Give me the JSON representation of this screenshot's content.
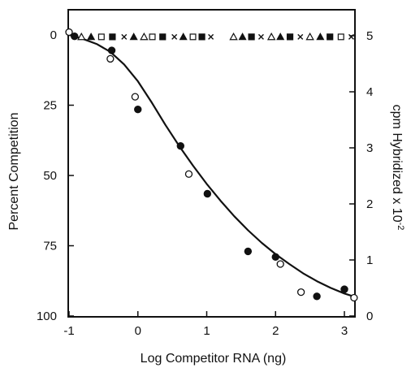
{
  "chart_data": {
    "type": "scatter",
    "xlabel": "Log Competitor RNA (ng)",
    "ylabel_left": "Percent Competition",
    "ylabel_right": "cpm Hybridized x 10",
    "ylabel_right_exponent": "-2",
    "xlim": [
      -1,
      3.2
    ],
    "ylim_left": [
      100,
      -10
    ],
    "ylim_right": [
      0,
      5.4
    ],
    "x_ticks": [
      -1,
      0,
      1,
      2,
      3
    ],
    "y_ticks_left": [
      0,
      25,
      50,
      75,
      100
    ],
    "y_ticks_right": [
      0,
      1,
      2,
      3,
      4,
      5
    ],
    "x_tick_labels": [
      "-1",
      "0",
      "1",
      "2",
      "3"
    ],
    "y_tick_labels_left": [
      "0",
      "25",
      "50",
      "75",
      "100"
    ],
    "y_tick_labels_right": [
      "0",
      "1",
      "2",
      "3",
      "4",
      "5"
    ],
    "grid": false,
    "series": [
      {
        "marker": "filled-circle",
        "axis": "left",
        "points": [
          {
            "x": -0.92,
            "y": 0.5
          },
          {
            "x": -0.38,
            "y": 5.5
          },
          {
            "x": 0.0,
            "y": 26.5
          },
          {
            "x": 0.62,
            "y": 39.5
          },
          {
            "x": 1.01,
            "y": 56.5
          },
          {
            "x": 1.6,
            "y": 77.0
          },
          {
            "x": 2.0,
            "y": 79.0
          },
          {
            "x": 2.6,
            "y": 93.0
          },
          {
            "x": 3.0,
            "y": 90.5
          }
        ]
      },
      {
        "marker": "open-circle",
        "axis": "left",
        "points": [
          {
            "x": -1.0,
            "y": -1.0
          },
          {
            "x": -0.4,
            "y": 8.5
          },
          {
            "x": -0.04,
            "y": 22.0
          },
          {
            "x": 0.74,
            "y": 49.5
          },
          {
            "x": 2.07,
            "y": 81.5
          },
          {
            "x": 2.37,
            "y": 91.5
          },
          {
            "x": 3.14,
            "y": 93.5
          }
        ]
      },
      {
        "marker": "fitted-curve",
        "axis": "left",
        "points": [
          {
            "x": -1.0,
            "y": 0.0
          },
          {
            "x": -0.8,
            "y": 1.4
          },
          {
            "x": -0.6,
            "y": 3.2
          },
          {
            "x": -0.4,
            "y": 6.0
          },
          {
            "x": -0.2,
            "y": 10.5
          },
          {
            "x": 0.0,
            "y": 16.5
          },
          {
            "x": 0.2,
            "y": 24.0
          },
          {
            "x": 0.4,
            "y": 32.0
          },
          {
            "x": 0.6,
            "y": 39.5
          },
          {
            "x": 0.8,
            "y": 46.5
          },
          {
            "x": 1.0,
            "y": 53.0
          },
          {
            "x": 1.2,
            "y": 59.0
          },
          {
            "x": 1.4,
            "y": 64.5
          },
          {
            "x": 1.6,
            "y": 69.5
          },
          {
            "x": 1.8,
            "y": 74.0
          },
          {
            "x": 2.0,
            "y": 78.0
          },
          {
            "x": 2.2,
            "y": 81.5
          },
          {
            "x": 2.4,
            "y": 84.8
          },
          {
            "x": 2.6,
            "y": 87.6
          },
          {
            "x": 2.8,
            "y": 90.0
          },
          {
            "x": 3.0,
            "y": 92.0
          },
          {
            "x": 3.18,
            "y": 93.4
          }
        ]
      },
      {
        "marker": "mixed-symbols",
        "axis": "right",
        "points": [
          {
            "x": -0.82,
            "y": 4.98,
            "symbol": "open-triangle"
          },
          {
            "x": -0.68,
            "y": 4.98,
            "symbol": "filled-triangle"
          },
          {
            "x": -0.53,
            "y": 4.98,
            "symbol": "open-square"
          },
          {
            "x": -0.37,
            "y": 4.98,
            "symbol": "filled-square"
          },
          {
            "x": -0.2,
            "y": 4.98,
            "symbol": "cross"
          },
          {
            "x": -0.06,
            "y": 4.98,
            "symbol": "filled-triangle"
          },
          {
            "x": 0.09,
            "y": 4.98,
            "symbol": "open-triangle"
          },
          {
            "x": 0.21,
            "y": 4.98,
            "symbol": "open-square"
          },
          {
            "x": 0.36,
            "y": 4.98,
            "symbol": "filled-square"
          },
          {
            "x": 0.53,
            "y": 4.98,
            "symbol": "cross"
          },
          {
            "x": 0.66,
            "y": 4.98,
            "symbol": "filled-triangle"
          },
          {
            "x": 0.8,
            "y": 4.98,
            "symbol": "open-square"
          },
          {
            "x": 0.93,
            "y": 4.98,
            "symbol": "filled-square"
          },
          {
            "x": 1.06,
            "y": 4.98,
            "symbol": "cross"
          },
          {
            "x": 1.39,
            "y": 4.98,
            "symbol": "open-triangle"
          },
          {
            "x": 1.52,
            "y": 4.98,
            "symbol": "filled-triangle"
          },
          {
            "x": 1.65,
            "y": 4.98,
            "symbol": "filled-square"
          },
          {
            "x": 1.79,
            "y": 4.98,
            "symbol": "cross"
          },
          {
            "x": 1.94,
            "y": 4.98,
            "symbol": "open-triangle"
          },
          {
            "x": 2.07,
            "y": 4.98,
            "symbol": "filled-triangle"
          },
          {
            "x": 2.21,
            "y": 4.98,
            "symbol": "filled-square"
          },
          {
            "x": 2.36,
            "y": 4.98,
            "symbol": "cross"
          },
          {
            "x": 2.5,
            "y": 4.98,
            "symbol": "open-triangle"
          },
          {
            "x": 2.65,
            "y": 4.98,
            "symbol": "filled-triangle"
          },
          {
            "x": 2.79,
            "y": 4.98,
            "symbol": "filled-square"
          },
          {
            "x": 2.95,
            "y": 4.98,
            "symbol": "open-square"
          },
          {
            "x": 3.1,
            "y": 4.98,
            "symbol": "cross"
          }
        ]
      }
    ]
  }
}
